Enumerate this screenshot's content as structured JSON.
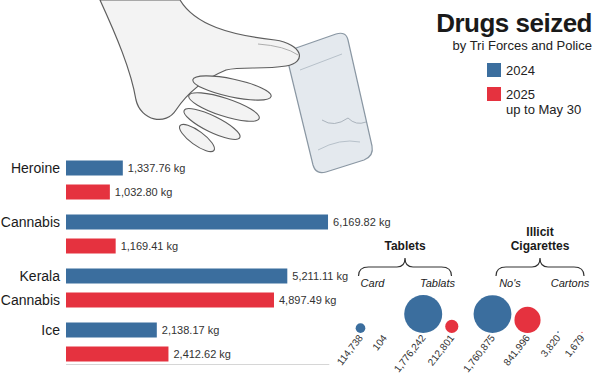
{
  "chart_data": [
    {
      "type": "bar",
      "orientation": "horizontal",
      "title": "Drugs seized",
      "subtitle": "by Tri Forces and Police",
      "categories": [
        "Heroine",
        "Cannabis",
        "Kerala Cannabis",
        "Ice"
      ],
      "series": [
        {
          "name": "2024",
          "color": "#3b6e9e",
          "values": [
            1337.76,
            6169.82,
            5211.11,
            2138.17
          ],
          "value_labels": [
            "1,337.76 kg",
            "6,169.82 kg",
            "5,211.11 kg",
            "2,138.17 kg"
          ]
        },
        {
          "name": "2025 up to May 30",
          "color": "#e5323f",
          "values": [
            1032.8,
            1169.41,
            4897.49,
            2412.62
          ],
          "value_labels": [
            "1,032.80 kg",
            "1,169.41 kg",
            "4,897.49 kg",
            "2,412.62 kg"
          ]
        }
      ],
      "xlim": [
        0,
        6200
      ],
      "data_labels": true,
      "tick_labels": "y",
      "legend": "top-right"
    },
    {
      "type": "bubble",
      "title": "Tablets",
      "categories": [
        "Card",
        "Tablats"
      ],
      "series": [
        {
          "color": "#3b6e9e",
          "values": [
            114738,
            1776242
          ],
          "value_labels": [
            "114,738",
            "1,776,242"
          ]
        },
        {
          "color": "#e5323f",
          "values": [
            104,
            212801
          ],
          "value_labels": [
            "104",
            "212,801"
          ]
        }
      ],
      "data_labels": true,
      "tick_labels": "x"
    },
    {
      "type": "bubble",
      "title": "Illicit Cigarettes",
      "categories": [
        "No's",
        "Cartons"
      ],
      "series": [
        {
          "color": "#3b6e9e",
          "values": [
            1760875,
            3820
          ],
          "value_labels": [
            "1,760,875",
            "3,820"
          ]
        },
        {
          "color": "#e5323f",
          "values": [
            841996,
            1679
          ],
          "value_labels": [
            "841,996",
            "1,679"
          ]
        }
      ],
      "data_labels": true,
      "tick_labels": "x"
    }
  ]
}
